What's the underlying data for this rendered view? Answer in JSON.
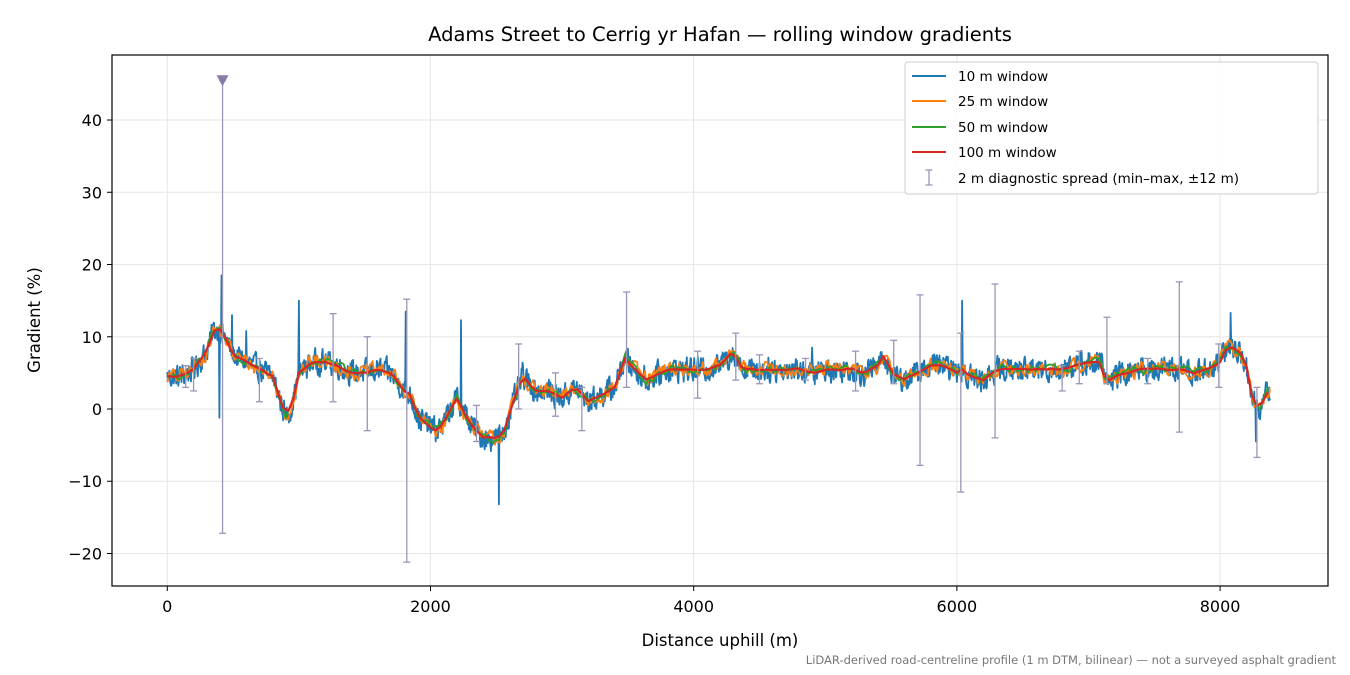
{
  "chart_data": {
    "type": "line",
    "title": "Adams Street to Cerrig yr Hafan — rolling window gradients",
    "xlabel": "Distance uphill (m)",
    "ylabel": "Gradient (%)",
    "xlim": [
      -420,
      8820
    ],
    "ylim": [
      -24.5,
      49
    ],
    "xticks": [
      0,
      2000,
      4000,
      6000,
      8000
    ],
    "yticks": [
      -20,
      -10,
      0,
      10,
      20,
      30,
      40
    ],
    "xtick_labels": [
      "0",
      "2000",
      "4000",
      "6000",
      "8000"
    ],
    "ytick_labels": [
      "−20",
      "−10",
      "0",
      "10",
      "20",
      "30",
      "40"
    ],
    "grid": true,
    "legend_position": "top-right",
    "footnote": "LiDAR-derived road-centreline profile (1 m DTM, bilinear) — not a surveyed asphalt gradient",
    "base_profile": {
      "x": [
        0,
        100,
        200,
        300,
        350,
        400,
        450,
        500,
        600,
        700,
        800,
        900,
        950,
        1000,
        1100,
        1200,
        1300,
        1400,
        1500,
        1600,
        1700,
        1800,
        1850,
        1900,
        2000,
        2050,
        2100,
        2200,
        2300,
        2400,
        2500,
        2550,
        2650,
        2700,
        2800,
        2900,
        3000,
        3100,
        3200,
        3300,
        3400,
        3480,
        3550,
        3650,
        3700,
        3800,
        3900,
        4000,
        4100,
        4200,
        4300,
        4350,
        4400,
        4500,
        4600,
        4700,
        4800,
        4900,
        5000,
        5100,
        5200,
        5300,
        5400,
        5450,
        5500,
        5600,
        5700,
        5800,
        5900,
        6000,
        6050,
        6100,
        6200,
        6300,
        6400,
        6500,
        6600,
        6700,
        6800,
        6900,
        7000,
        7100,
        7130,
        7200,
        7300,
        7400,
        7500,
        7600,
        7700,
        7800,
        7900,
        8000,
        8050,
        8100,
        8150,
        8200,
        8250,
        8300,
        8380
      ],
      "y": [
        4.5,
        4.5,
        5.5,
        8.0,
        10.8,
        11.0,
        9.5,
        7.5,
        6.5,
        5.5,
        4.5,
        -1.0,
        0.5,
        5.0,
        6.5,
        6.5,
        6.0,
        5.0,
        5.0,
        5.5,
        5.0,
        2.5,
        2.0,
        -1.0,
        -2.5,
        -3.0,
        -2.0,
        1.5,
        -2.0,
        -4.0,
        -4.0,
        -3.5,
        2.0,
        4.5,
        2.5,
        2.5,
        1.5,
        3.0,
        1.0,
        2.0,
        3.0,
        7.0,
        5.5,
        4.0,
        4.5,
        5.5,
        5.5,
        5.5,
        5.5,
        6.0,
        8.0,
        6.0,
        5.5,
        5.5,
        5.5,
        5.5,
        5.5,
        5.0,
        5.5,
        5.5,
        5.5,
        5.0,
        6.0,
        7.5,
        5.0,
        4.0,
        5.0,
        6.0,
        6.0,
        5.0,
        5.5,
        4.5,
        4.0,
        5.5,
        5.5,
        5.5,
        5.5,
        5.5,
        5.5,
        6.0,
        6.5,
        6.5,
        3.5,
        4.5,
        5.0,
        5.5,
        5.5,
        5.5,
        5.5,
        5.0,
        5.5,
        6.5,
        8.5,
        8.5,
        8.0,
        6.0,
        1.0,
        0.0,
        3.0
      ]
    },
    "series": [
      {
        "name": "10 m window",
        "color": "#1f77b4",
        "noise": 2.3,
        "window": 10
      },
      {
        "name": "25 m window",
        "color": "#ff7f0e",
        "noise": 1.5,
        "window": 25
      },
      {
        "name": "50 m window",
        "color": "#2ca02c",
        "noise": 0.8,
        "window": 50
      },
      {
        "name": "100 m window",
        "color": "#d62728",
        "noise": 0.15,
        "window": 100
      }
    ],
    "spikes_10m": [
      {
        "x": 410,
        "y": 18.5
      },
      {
        "x": 395,
        "y": -1.2
      },
      {
        "x": 490,
        "y": 13.0
      },
      {
        "x": 1000,
        "y": 15.0
      },
      {
        "x": 1810,
        "y": 13.5
      },
      {
        "x": 2230,
        "y": 12.3
      },
      {
        "x": 2520,
        "y": -13.2
      },
      {
        "x": 4900,
        "y": 8.5
      },
      {
        "x": 6040,
        "y": 15.0
      },
      {
        "x": 8080,
        "y": 13.3
      },
      {
        "x": 8270,
        "y": -4.5
      },
      {
        "x": 600,
        "y": 10.8
      }
    ],
    "errorbars": {
      "name": "2 m diagnostic spread (min–max, ±12 m)",
      "color": "#9a96b8",
      "points": [
        {
          "x": 140,
          "ymin": 3.0,
          "ymax": 6.0
        },
        {
          "x": 200,
          "ymin": 2.5,
          "ymax": 7.0
        },
        {
          "x": 420,
          "ymin": -17.2,
          "ymax": 45.5
        },
        {
          "x": 700,
          "ymin": 1.0,
          "ymax": 7.0
        },
        {
          "x": 1260,
          "ymin": 1.0,
          "ymax": 13.2
        },
        {
          "x": 1520,
          "ymin": -3.0,
          "ymax": 10.0
        },
        {
          "x": 1820,
          "ymin": -21.2,
          "ymax": 15.2
        },
        {
          "x": 2350,
          "ymin": -4.5,
          "ymax": 0.5
        },
        {
          "x": 2670,
          "ymin": 0.0,
          "ymax": 9.0
        },
        {
          "x": 2950,
          "ymin": -1.0,
          "ymax": 5.0
        },
        {
          "x": 3150,
          "ymin": -3.0,
          "ymax": 3.0
        },
        {
          "x": 3490,
          "ymin": 3.0,
          "ymax": 16.2
        },
        {
          "x": 4030,
          "ymin": 1.5,
          "ymax": 8.0
        },
        {
          "x": 4320,
          "ymin": 4.0,
          "ymax": 10.5
        },
        {
          "x": 4500,
          "ymin": 3.5,
          "ymax": 7.5
        },
        {
          "x": 4850,
          "ymin": 4.0,
          "ymax": 7.0
        },
        {
          "x": 5230,
          "ymin": 2.5,
          "ymax": 8.0
        },
        {
          "x": 5520,
          "ymin": 3.5,
          "ymax": 9.5
        },
        {
          "x": 5720,
          "ymin": -7.8,
          "ymax": 15.8
        },
        {
          "x": 6030,
          "ymin": -11.5,
          "ymax": 10.5
        },
        {
          "x": 6290,
          "ymin": -4.0,
          "ymax": 17.3
        },
        {
          "x": 6800,
          "ymin": 2.5,
          "ymax": 6.0
        },
        {
          "x": 6930,
          "ymin": 3.5,
          "ymax": 8.0
        },
        {
          "x": 7140,
          "ymin": 3.5,
          "ymax": 12.7
        },
        {
          "x": 7450,
          "ymin": 3.5,
          "ymax": 7.0
        },
        {
          "x": 7690,
          "ymin": -3.2,
          "ymax": 17.6
        },
        {
          "x": 7990,
          "ymin": 3.0,
          "ymax": 9.0
        },
        {
          "x": 8280,
          "ymin": -6.7,
          "ymax": 3.0
        }
      ],
      "clipped_marker": {
        "x": 420,
        "y": 45.5
      }
    }
  }
}
